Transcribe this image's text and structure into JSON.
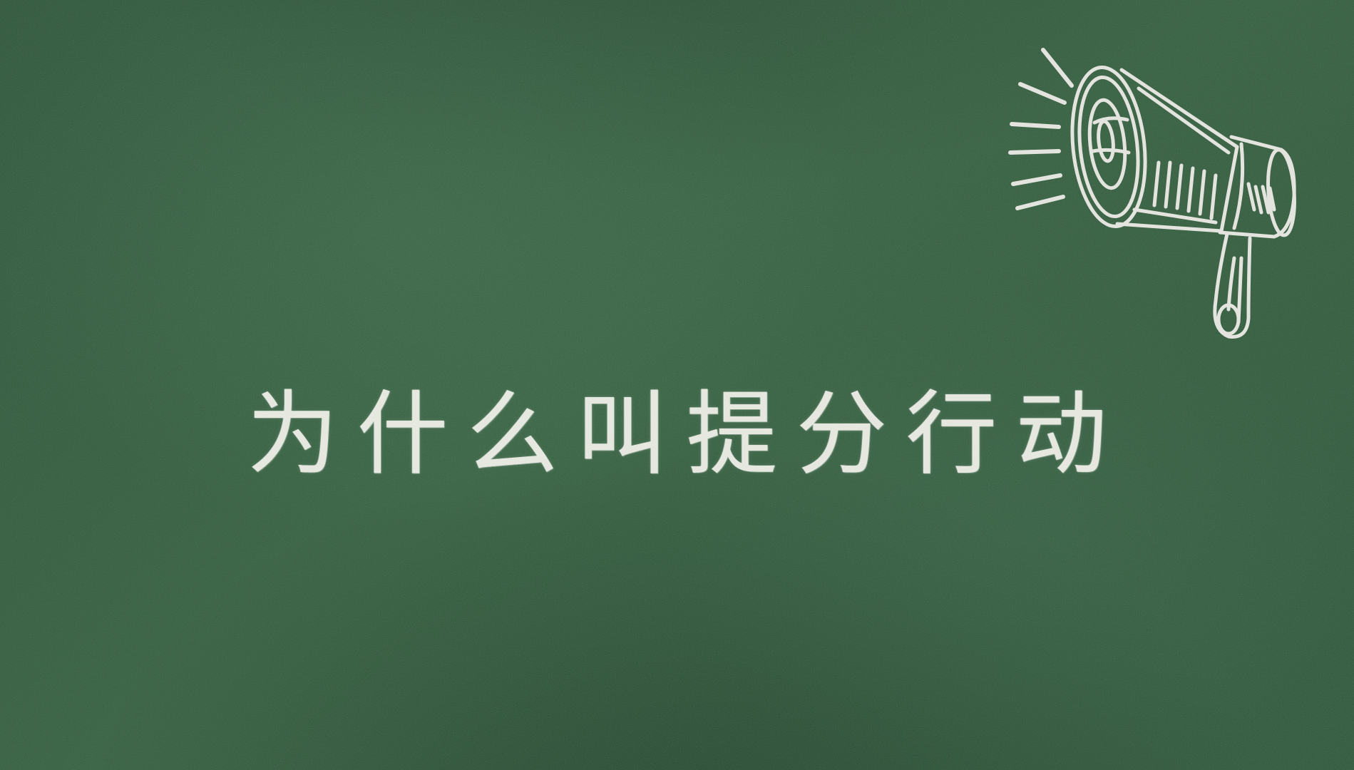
{
  "slide": {
    "title": "为什么叫提分行动",
    "background": "chalkboard",
    "chalk_color": "#f1f1ea",
    "board_color": "#2f5a3c",
    "illustration": "megaphone-icon"
  }
}
